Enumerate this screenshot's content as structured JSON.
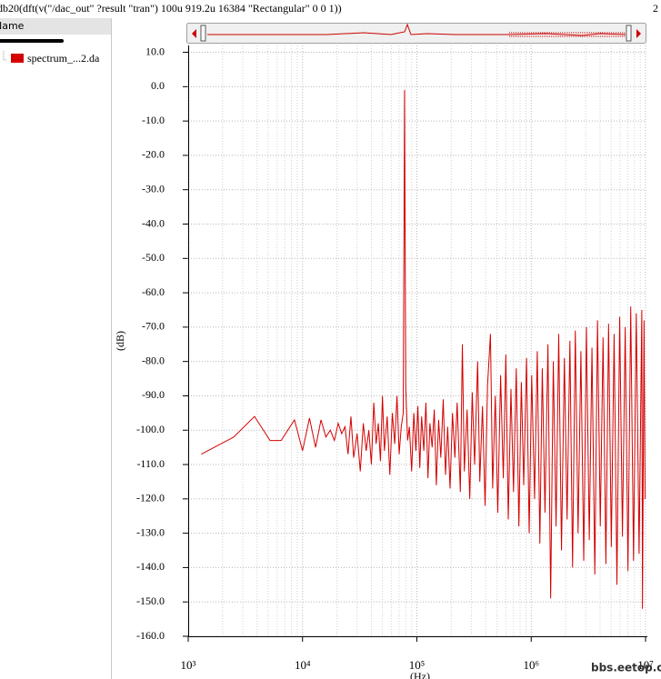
{
  "header": {
    "title": "db20(dft(v(\"/dac_out\" ?result \"tran\")  100u 919.2u 16384 \"Rectangular\" 0 0 1))",
    "right_text": "2"
  },
  "side_panel": {
    "column_header": "Name"
  },
  "chart_data": {
    "type": "line",
    "x_label": "(Hz)",
    "y_label": "(dB)",
    "watermark": "bbs.eetop.cn",
    "log_x": true,
    "grid": true,
    "xlim": [
      1000,
      10000000
    ],
    "ylim": [
      -160,
      12
    ],
    "xticks": [
      {
        "value": 1000,
        "label": "10³"
      },
      {
        "value": 10000,
        "label": "10⁴"
      },
      {
        "value": 100000,
        "label": "10⁵"
      },
      {
        "value": 1000000,
        "label": "10⁶"
      },
      {
        "value": 10000000,
        "label": "10⁷"
      }
    ],
    "x_minor_ticks": [
      2000,
      3000,
      4000,
      5000,
      6000,
      7000,
      8000,
      9000,
      20000,
      30000,
      40000,
      50000,
      60000,
      70000,
      80000,
      90000,
      200000,
      300000,
      400000,
      500000,
      600000,
      700000,
      800000,
      900000,
      2000000,
      3000000,
      4000000,
      5000000,
      6000000,
      7000000,
      8000000,
      9000000
    ],
    "yticks": [
      {
        "value": 10,
        "label": "10.0"
      },
      {
        "value": 0,
        "label": "0.0"
      },
      {
        "value": -10,
        "label": "-10.0"
      },
      {
        "value": -20,
        "label": "-20.0"
      },
      {
        "value": -30,
        "label": "-30.0"
      },
      {
        "value": -40,
        "label": "-40.0"
      },
      {
        "value": -50,
        "label": "-50.0"
      },
      {
        "value": -60,
        "label": "-60.0"
      },
      {
        "value": -70,
        "label": "-70.0"
      },
      {
        "value": -80,
        "label": "-80.0"
      },
      {
        "value": -90,
        "label": "-90.0"
      },
      {
        "value": -100,
        "label": "-100.0"
      },
      {
        "value": -110,
        "label": "-110.0"
      },
      {
        "value": -120,
        "label": "-120.0"
      },
      {
        "value": -130,
        "label": "-130.0"
      },
      {
        "value": -140,
        "label": "-140.0"
      },
      {
        "value": -150,
        "label": "-150.0"
      },
      {
        "value": -160,
        "label": "-160.0"
      }
    ],
    "series": [
      {
        "name": "spectrum_...2.da",
        "color": "#d40000",
        "x": [
          1300,
          2500,
          3800,
          5200,
          6500,
          8500,
          10000,
          11500,
          13000,
          14500,
          16000,
          17500,
          19000,
          20500,
          22000,
          23500,
          25000,
          26500,
          28000,
          30000,
          32000,
          34000,
          36000,
          38000,
          40000,
          42000,
          44000,
          46000,
          48000,
          50000,
          52000,
          55000,
          58000,
          61000,
          64000,
          67000,
          70000,
          73000,
          76000,
          78000,
          79000,
          80000,
          83000,
          86000,
          90000,
          94000,
          98000,
          102000,
          106000,
          110000,
          115000,
          120000,
          125000,
          130000,
          136000,
          142000,
          148000,
          155000,
          162000,
          170000,
          178000,
          186000,
          195000,
          205000,
          215000,
          225000,
          240000,
          250000,
          260000,
          275000,
          290000,
          305000,
          320000,
          340000,
          355000,
          375000,
          395000,
          415000,
          440000,
          460000,
          485000,
          510000,
          540000,
          570000,
          600000,
          630000,
          665000,
          700000,
          740000,
          780000,
          820000,
          860000,
          910000,
          960000,
          1010000,
          1070000,
          1130000,
          1190000,
          1250000,
          1320000,
          1400000,
          1480000,
          1560000,
          1650000,
          1740000,
          1840000,
          1950000,
          2060000,
          2180000,
          2300000,
          2430000,
          2570000,
          2720000,
          2880000,
          3040000,
          3220000,
          3400000,
          3600000,
          3800000,
          4020000,
          4250000,
          4500000,
          4750000,
          5020000,
          5310000,
          5620000,
          5940000,
          6280000,
          6640000,
          7020000,
          7420000,
          7850000,
          8300000,
          8780000,
          9280000,
          9400000,
          9700000,
          9900000
        ],
        "values": [
          -107,
          -102,
          -96,
          -103,
          -103,
          -97,
          -106,
          -96.5,
          -105,
          -97,
          -102,
          -100,
          -103,
          -98,
          -101,
          -99,
          -107,
          -96,
          -108,
          -101,
          -112,
          -98,
          -106,
          -100,
          -110,
          -92,
          -104,
          -98,
          -109,
          -90,
          -106,
          -96,
          -113,
          -95,
          -104,
          -90,
          -107,
          -99,
          -95,
          -1,
          -50,
          -88,
          -103,
          -99,
          -112,
          -95,
          -106,
          -93,
          -111,
          -96,
          -106,
          -92,
          -114,
          -98,
          -105,
          -94,
          -116,
          -97,
          -108,
          -91,
          -113,
          -99,
          -117,
          -95,
          -108,
          -92,
          -118,
          -75,
          -112,
          -94,
          -120,
          -89,
          -110,
          -80,
          -115,
          -93,
          -122,
          -87,
          -72,
          -117,
          -90,
          -124,
          -84,
          -114,
          -78,
          -126,
          -88,
          -118,
          -82,
          -128,
          -86,
          -116,
          -79,
          -130,
          -84,
          -120,
          -77,
          -133,
          -82,
          -124,
          -75,
          -149,
          -80,
          -128,
          -72,
          -135,
          -79,
          -126,
          -74,
          -140,
          -71,
          -130,
          -77,
          -138,
          -70,
          -132,
          -76,
          -142,
          -68,
          -128,
          -73,
          -139,
          -69,
          -134,
          -72,
          -145,
          -67,
          -131,
          -70,
          -141,
          -64,
          -138,
          -66,
          -136,
          -65,
          -152,
          -68,
          -120
        ]
      }
    ]
  }
}
